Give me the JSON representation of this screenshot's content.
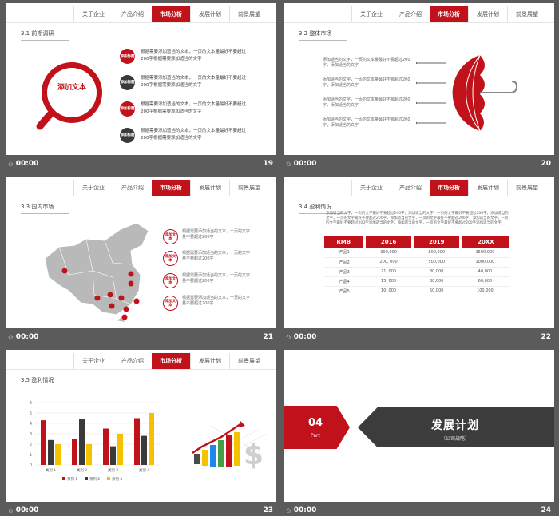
{
  "nav": {
    "tabs": [
      "关于企业",
      "产品介绍",
      "市场分析",
      "发展计划",
      "前景展望"
    ],
    "active_index": 2
  },
  "footer_time": "00:00",
  "colors": {
    "accent": "#c1121c",
    "dark": "#3a3a3a",
    "background": "#5b5b5b"
  },
  "slides": {
    "s19": {
      "number": "19",
      "title": "3.1 前期调研",
      "magnifier_text": "添加文本",
      "items": [
        {
          "badge": "添加标题",
          "text": "根据需要添加适当的文本，一页的文本量最好不要超过200字根据需要添加适当的文字",
          "style": "red"
        },
        {
          "badge": "添加标题",
          "text": "根据需要添加适当的文本，一页的文本量最好不要超过200字根据需要添加适当的文字",
          "style": "dark"
        },
        {
          "badge": "添加标题",
          "text": "根据需要添加适当的文本，一页的文本量最好不要超过200字根据需要添加适当的文字",
          "style": "red"
        },
        {
          "badge": "添加标题",
          "text": "根据需要添加适当的文本，一页的文本量最好不要超过200字根据需要添加适当的文字",
          "style": "dark"
        }
      ]
    },
    "s20": {
      "number": "20",
      "title": "3.2 整体市场",
      "items": [
        "添加适当的文字，一页的文本量最好不要超过200字，添加适当的文字",
        "添加适当的文字，一页的文本量最好不要超过200字，添加适当的文字",
        "添加适当的文字，一页的文本量最好不要超过200字，添加适当的文字",
        "添加适当的文字，一页的文本量最好不要超过200字，添加适当的文字"
      ]
    },
    "s21": {
      "number": "21",
      "title": "3.3 国内市场",
      "items": [
        {
          "badge": "添加文本",
          "text": "根据需要添加适当的文本，一页的文字量不要超过200字"
        },
        {
          "badge": "添加文本",
          "text": "根据需要添加适当的文本，一页的文字量不要超过200字"
        },
        {
          "badge": "添加文本",
          "text": "根据需要添加适当的文本，一页的文字量不要超过200字"
        },
        {
          "badge": "添加文本",
          "text": "根据需要添加适当的文本，一页的文字量不要超过200字"
        }
      ]
    },
    "s22": {
      "number": "22",
      "title": "3.4 盈利情况",
      "paragraph": "添加适当的文字，一页的文字最好不要超过200字，添加适当的文字，一页的文字最好不要超过200字，添加适当的文字，一页的文字最好不要超过200字，添加适当的文字，一页的文字最好不要超过200字，添加适当的文字，一页的文字最好不要超过200字添加适当的文字，添加适当的文字，一页的文字最好不要超过200字添加适当的文字",
      "table": {
        "headers": [
          "RMB",
          "2016",
          "2019",
          "20XX"
        ],
        "rows": [
          [
            "产品1",
            "300,000",
            "800,000",
            "1500,000"
          ],
          [
            "产品2",
            "200, 000",
            "500,000",
            "1000,000"
          ],
          [
            "产品3",
            "21, 000",
            "30,000",
            "40,000"
          ],
          [
            "产品4",
            "15, 000",
            "30,000",
            "60,000"
          ],
          [
            "产品5",
            "10, 000",
            "50,000",
            "100,000"
          ]
        ]
      }
    },
    "s23": {
      "number": "23",
      "title": "3.5 盈利情况"
    },
    "s24": {
      "number": "24",
      "part_number": "04",
      "part_label": "Part",
      "heading": "发展计划",
      "subheading": "（公司战略）"
    }
  },
  "chart_data": {
    "type": "bar",
    "categories": [
      "类别 1",
      "类别 2",
      "类别 3",
      "类别 4"
    ],
    "series": [
      {
        "name": "系列 1",
        "values": [
          4.3,
          2.5,
          3.5,
          4.5
        ],
        "color": "#c1121c"
      },
      {
        "name": "系列 2",
        "values": [
          2.4,
          4.4,
          1.8,
          2.8
        ],
        "color": "#3a3a3a"
      },
      {
        "name": "系列 3",
        "values": [
          2.0,
          2.0,
          3.0,
          5.0
        ],
        "color": "#f6c200"
      }
    ],
    "ylim": [
      0,
      6
    ],
    "yticks": [
      "0",
      "1",
      "2",
      "3",
      "4",
      "5",
      "6"
    ],
    "legend": "bottom",
    "grid": true
  }
}
